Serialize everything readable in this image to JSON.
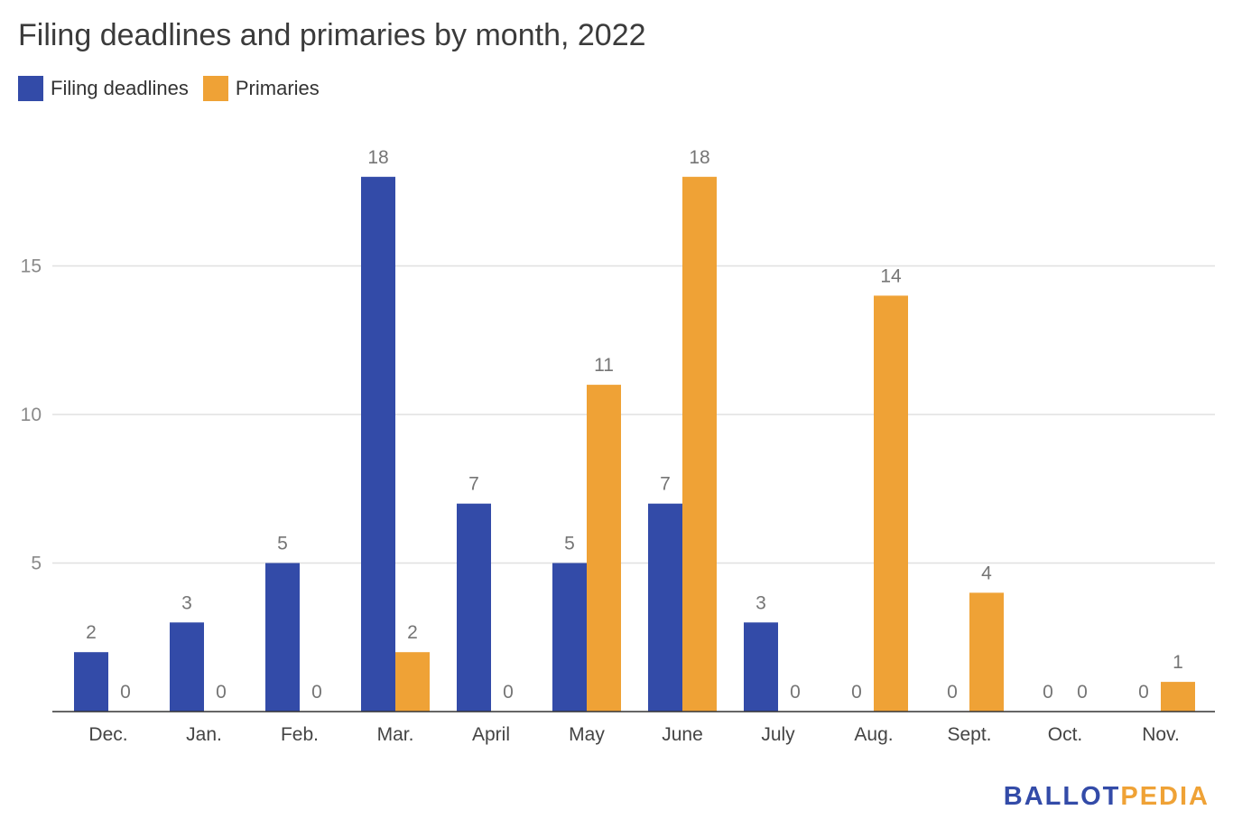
{
  "chart_data": {
    "type": "bar",
    "title": "Filing deadlines and primaries by month, 2022",
    "xlabel": "",
    "ylabel": "",
    "categories": [
      "Dec.",
      "Jan.",
      "Feb.",
      "Mar.",
      "April",
      "May",
      "June",
      "July",
      "Aug.",
      "Sept.",
      "Oct.",
      "Nov."
    ],
    "series": [
      {
        "name": "Filing deadlines",
        "color": "#334ba8",
        "values": [
          2,
          3,
          5,
          18,
          7,
          5,
          7,
          3,
          0,
          0,
          0,
          0
        ]
      },
      {
        "name": "Primaries",
        "color": "#efa236",
        "values": [
          0,
          0,
          0,
          2,
          0,
          11,
          18,
          0,
          14,
          4,
          0,
          1
        ]
      }
    ],
    "ylim": [
      0,
      20
    ],
    "yticks": [
      5,
      10,
      15
    ],
    "grid": true,
    "legend": "top-left",
    "data_labels": true
  },
  "logo": {
    "part1": "BALLOT",
    "part2": "PEDIA",
    "color1": "#334ba8",
    "color2": "#efa236"
  }
}
